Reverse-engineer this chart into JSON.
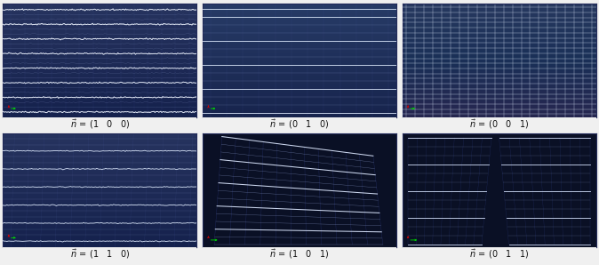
{
  "figsize": [
    6.74,
    2.98
  ],
  "dpi": 100,
  "outer_bg": "#f0f0f0",
  "dark_navy": "#0d1235",
  "mid_blue": "#1a2252",
  "light_blue": "#1e2a60",
  "grid_bright": "#d0dcf0",
  "grid_mid": "#8898c8",
  "grid_dim": "#4858a0",
  "label_fontsize": 7.0,
  "label_color": "#111111",
  "panel_border_color": "#222a5a",
  "labels_top": [
    "1 \\quad 0 \\quad 0",
    "0 \\quad 1 \\quad 0",
    "0 \\quad 0 \\quad 1"
  ],
  "labels_bot": [
    "1 \\quad 1 \\quad 0",
    "1 \\quad 0 \\quad 1",
    "0 \\quad 1 \\quad 1"
  ]
}
